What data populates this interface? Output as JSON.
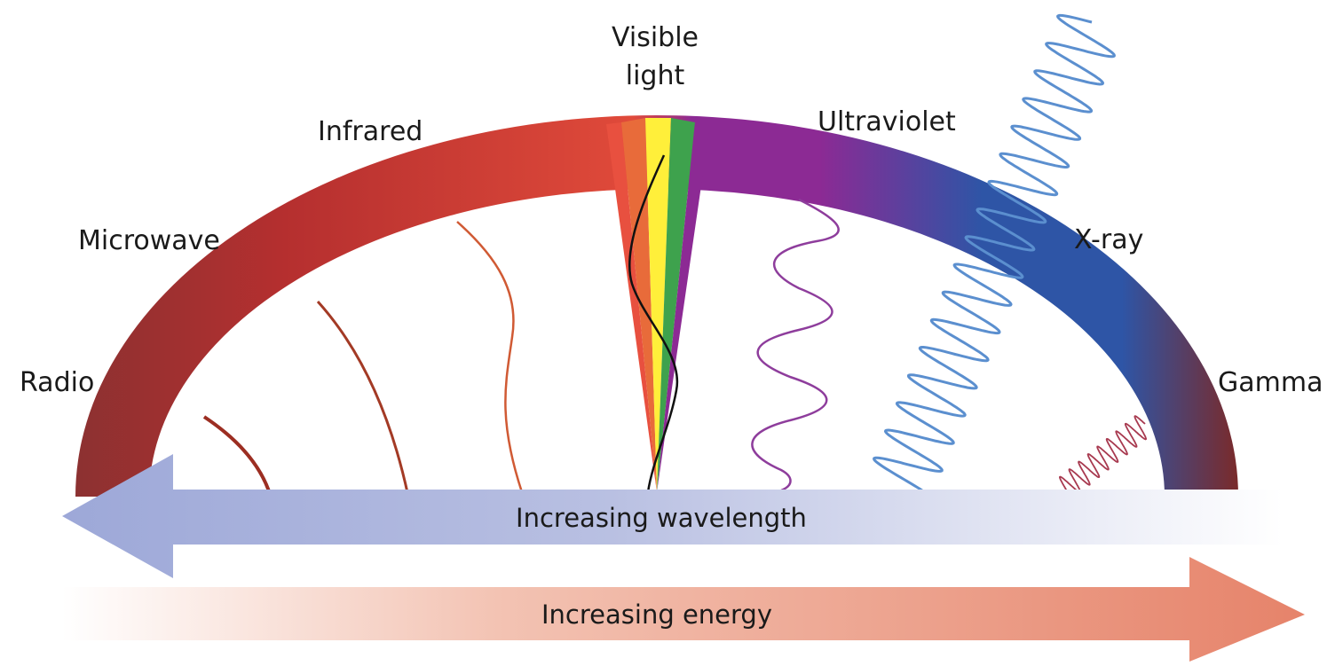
{
  "labels": {
    "radio": "Radio",
    "microwave": "Microwave",
    "infrared": "Infrared",
    "visible_line1": "Visible",
    "visible_line2": "light",
    "ultraviolet": "Ultraviolet",
    "xray": "X-ray",
    "gamma": "Gamma"
  },
  "arrows": {
    "wavelength": "Increasing wavelength",
    "energy": "Increasing energy"
  },
  "colors": {
    "radio": "#8c3131",
    "microwave": "#b52f2f",
    "infrared": "#e04a3a",
    "visible_red": "#e8503f",
    "visible_orange": "#e86b3a",
    "visible_yellow": "#ffef3a",
    "visible_green": "#3ea24d",
    "ultraviolet": "#8c2a94",
    "xray": "#2e55a6",
    "gamma": "#7a2a2a",
    "wave_radio": "#9c2e22",
    "wave_microwave": "#a33a25",
    "wave_infrared": "#d05a34",
    "wave_visible": "#111111",
    "wave_ultraviolet": "#8e3d9c",
    "wave_xray": "#5b8fcf",
    "wave_gamma": "#a83a50",
    "wavelength_arrow_start": "#9da8d8",
    "wavelength_arrow_end": "#ffffff",
    "energy_arrow_start": "#ffffff",
    "energy_arrow_end": "#e6836a"
  }
}
